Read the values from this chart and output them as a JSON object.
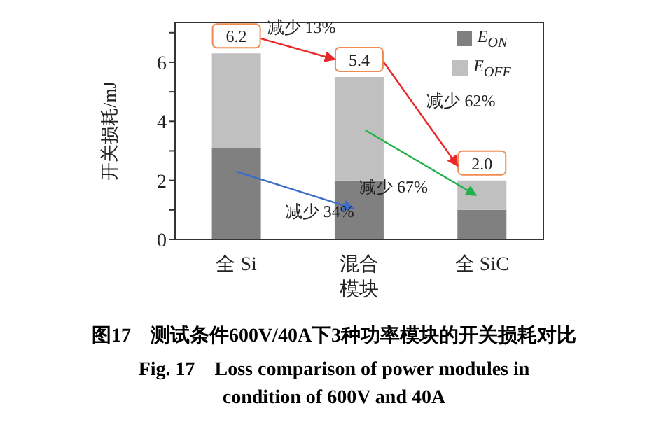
{
  "chart_data": {
    "type": "bar",
    "title": "图17　测试条件600V/40A下3种功率模块的开关损耗对比",
    "subtitle": "Fig. 17　Loss comparison of power modules in condition of 600V and 40A",
    "ylabel": "开关损耗/mJ",
    "categories": [
      "全 Si",
      "混合模块",
      "全 SiC"
    ],
    "stacked": true,
    "series": [
      {
        "name": "E$_{ON}$",
        "color": "#808080",
        "values": [
          3.1,
          2.0,
          1.0
        ]
      },
      {
        "name": "E$_{OFF}$",
        "color": "#c0c0c0",
        "values": [
          3.2,
          3.5,
          1.0
        ]
      }
    ],
    "totals": [
      "6.2",
      "5.4",
      "2.0"
    ],
    "annotations": [
      "减少 13%",
      "减少 62%",
      "减少 34%",
      "减少 67%"
    ],
    "ylim": [
      0,
      7.35
    ],
    "yticks": [
      0,
      {
        "value": 1,
        "label": null
      },
      2,
      {
        "value": 3,
        "label": null
      },
      4,
      {
        "value": 5,
        "label": null
      },
      6,
      {
        "value": 7,
        "label": null
      }
    ],
    "legend": "top right"
  }
}
